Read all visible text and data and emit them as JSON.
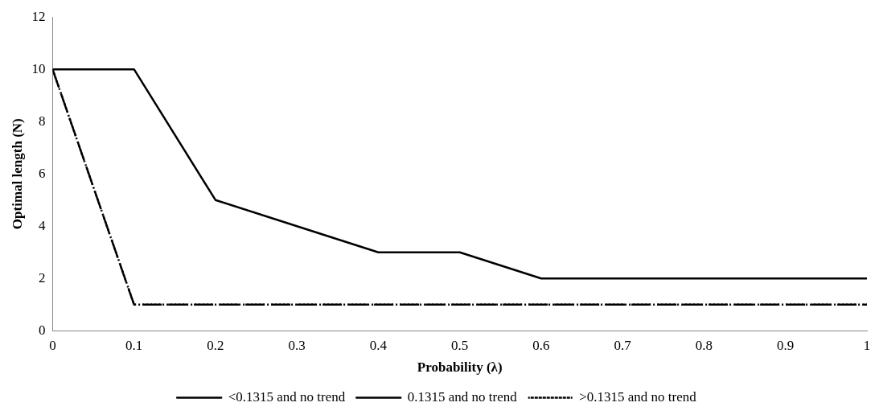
{
  "chart_data": {
    "type": "line",
    "xlabel": "Probability (λ)",
    "ylabel": "Optimal length (N)",
    "x": [
      0,
      0.1,
      0.2,
      0.3,
      0.4,
      0.5,
      0.6,
      0.7,
      0.8,
      0.9,
      1
    ],
    "series": [
      {
        "name": "<0.1315 and no trend",
        "color": "#000000",
        "line_style": "solid",
        "values": [
          10,
          10,
          5,
          4,
          3,
          3,
          2,
          2,
          2,
          2,
          2
        ]
      },
      {
        "name": "0.1315 and no trend",
        "color": "#000000",
        "line_style": "dashed",
        "values": [
          10,
          1,
          1,
          1,
          1,
          1,
          1,
          1,
          1,
          1,
          1
        ]
      },
      {
        "name": ">0.1315 and no trend",
        "color": "#000000",
        "line_style": "dotted",
        "values": [
          10,
          1,
          1,
          1,
          1,
          1,
          1,
          1,
          1,
          1,
          1
        ]
      }
    ],
    "xlim": [
      0,
      1
    ],
    "xticks": [
      0,
      0.1,
      0.2,
      0.3,
      0.4,
      0.5,
      0.6,
      0.7,
      0.8,
      0.9,
      1
    ],
    "ylim": [
      0,
      12
    ],
    "yticks": [
      0,
      2,
      4,
      6,
      8,
      10,
      12
    ],
    "grid": false,
    "legend": "bottom",
    "marker": "none"
  }
}
